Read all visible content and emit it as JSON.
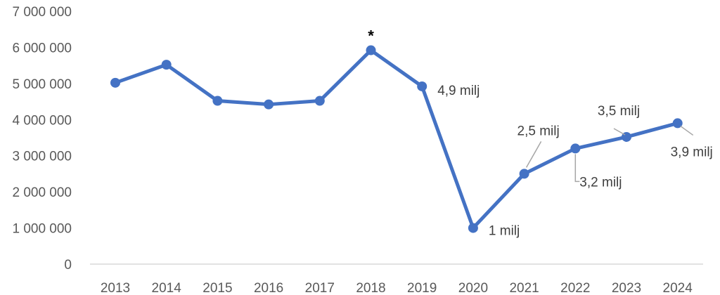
{
  "chart_data": {
    "type": "line",
    "title": "",
    "xlabel": "",
    "ylabel": "",
    "ylim": [
      0,
      7000000
    ],
    "y_ticks": [
      0,
      1000000,
      2000000,
      3000000,
      4000000,
      5000000,
      6000000,
      7000000
    ],
    "y_tick_labels": [
      "0",
      "1 000 000",
      "2 000 000",
      "3 000 000",
      "4 000 000",
      "5 000 000",
      "6 000 000",
      "7 000 000"
    ],
    "grid": false,
    "categories": [
      "2013",
      "2014",
      "2015",
      "2016",
      "2017",
      "2018",
      "2019",
      "2020",
      "2021",
      "2022",
      "2023",
      "2024"
    ],
    "series": [
      {
        "color": "#4472C4",
        "values": [
          5020000,
          5520000,
          4520000,
          4420000,
          4520000,
          5920000,
          4920000,
          1000000,
          2500000,
          3200000,
          3520000,
          3900000
        ]
      }
    ],
    "annotations": [
      {
        "category": "2018",
        "text": "*"
      },
      {
        "category": "2019",
        "text": "4,9 milj"
      },
      {
        "category": "2020",
        "text": "1 milj"
      },
      {
        "category": "2021",
        "text": "2,5 milj"
      },
      {
        "category": "2022",
        "text": "3,2 milj"
      },
      {
        "category": "2023",
        "text": "3,5 milj"
      },
      {
        "category": "2024",
        "text": "3,9 milj"
      }
    ]
  }
}
